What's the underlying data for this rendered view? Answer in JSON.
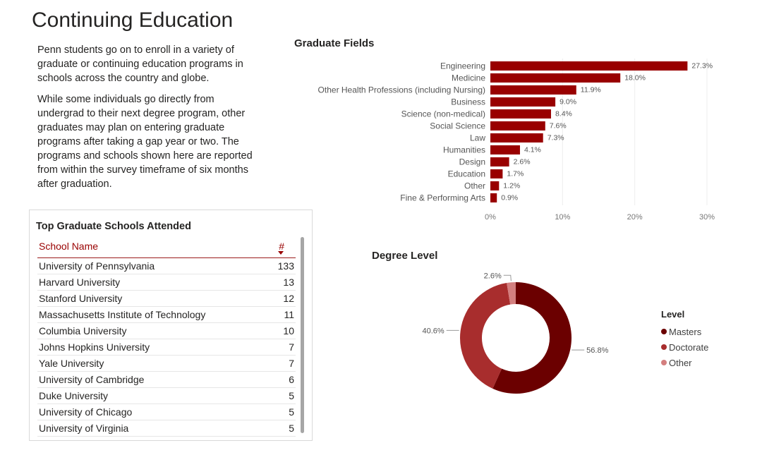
{
  "page": {
    "title": "Continuing Education",
    "intro": [
      "Penn students go on to enroll in a variety of graduate or continuing education programs in schools across the country and globe.",
      "While some individuals go directly from undergrad to their next degree program, other graduates may plan on entering graduate programs after taking a gap year or two. The programs and schools shown here are reported from within the survey timeframe of six months after graduation."
    ]
  },
  "colors": {
    "accent": "#990000",
    "masters": "#6b0000",
    "doctorate": "#a82d2d",
    "other": "#d47f7f"
  },
  "schools_table": {
    "title": "Top Graduate Schools Attended",
    "columns": [
      "School Name",
      "#"
    ],
    "sort_icon": "sort-descending-icon",
    "rows": [
      {
        "name": "University of Pennsylvania",
        "count": "133"
      },
      {
        "name": "Harvard University",
        "count": "13"
      },
      {
        "name": "Stanford University",
        "count": "12"
      },
      {
        "name": "Massachusetts Institute of Technology",
        "count": "11"
      },
      {
        "name": "Columbia University",
        "count": "10"
      },
      {
        "name": "Johns Hopkins University",
        "count": "7"
      },
      {
        "name": "Yale University",
        "count": "7"
      },
      {
        "name": "University of Cambridge",
        "count": "6"
      },
      {
        "name": "Duke University",
        "count": "5"
      },
      {
        "name": "University of Chicago",
        "count": "5"
      },
      {
        "name": "University of Virginia",
        "count": "5"
      }
    ]
  },
  "chart_data": [
    {
      "type": "bar",
      "orientation": "horizontal",
      "title": "Graduate Fields",
      "categories": [
        "Engineering",
        "Medicine",
        "Other Health Professions (including Nursing)",
        "Business",
        "Science (non-medical)",
        "Social Science",
        "Law",
        "Humanities",
        "Design",
        "Education",
        "Other",
        "Fine & Performing Arts"
      ],
      "values": [
        27.3,
        18.0,
        11.9,
        9.0,
        8.4,
        7.6,
        7.3,
        4.1,
        2.6,
        1.7,
        1.2,
        0.9
      ],
      "data_labels": [
        "27.3%",
        "18.0%",
        "11.9%",
        "9.0%",
        "8.4%",
        "7.6%",
        "7.3%",
        "4.1%",
        "2.6%",
        "1.7%",
        "1.2%",
        "0.9%"
      ],
      "xlim": [
        0,
        30
      ],
      "xticks": [
        0,
        10,
        20,
        30
      ],
      "xtick_labels": [
        "0%",
        "10%",
        "20%",
        "30%"
      ],
      "grid": true
    },
    {
      "type": "pie",
      "style": "donut",
      "title": "Degree Level",
      "legend_title": "Level",
      "legend_position": "right",
      "series": [
        {
          "name": "Masters",
          "value": 56.8,
          "label": "56.8%"
        },
        {
          "name": "Doctorate",
          "value": 40.6,
          "label": "40.6%"
        },
        {
          "name": "Other",
          "value": 2.6,
          "label": "2.6%"
        }
      ]
    }
  ]
}
